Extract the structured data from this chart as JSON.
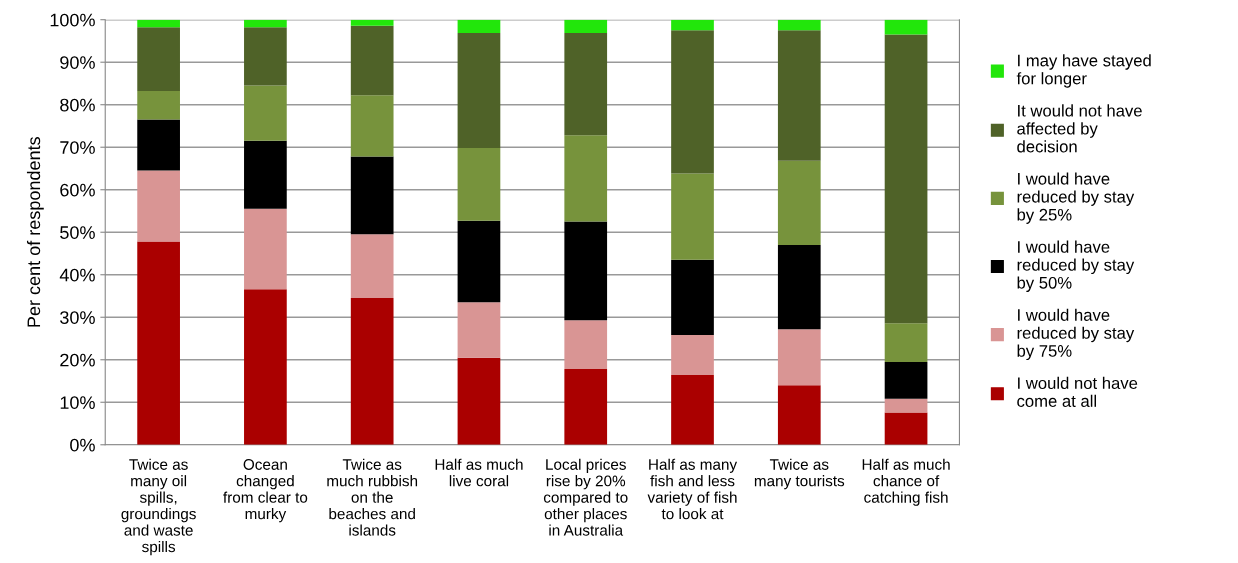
{
  "chart_data": {
    "type": "bar",
    "stacked": true,
    "ylabel": "Per cent of respondents",
    "categories": [
      "Twice as\nmany oil\nspills,\ngroundings\nand waste\nspills",
      "Ocean\nchanged\nfrom clear to\nmurky",
      "Twice as\nmuch rubbish\non the\nbeaches and\nislands",
      "Half as much\nlive coral",
      "Local prices\nrise by 20%\ncompared to\nother places\nin Australia",
      "Half as many\nfish and less\nvariety of fish\nto look at",
      "Twice as\nmany tourists",
      "Half as much\nchance of\ncatching fish"
    ],
    "series": [
      {
        "name": "I would not have\ncome at all",
        "color": "#aa0000",
        "values": [
          47.8,
          36.6,
          34.5,
          20.5,
          17.8,
          16.4,
          14.0,
          7.6
        ]
      },
      {
        "name": "I would have\nreduced by stay\nby 75%",
        "color": "#d99594",
        "values": [
          16.7,
          18.9,
          15.0,
          13.0,
          11.5,
          9.4,
          13.2,
          3.2
        ]
      },
      {
        "name": "I would have\nreduced by stay\nby 50%",
        "color": "#000000",
        "values": [
          12.0,
          16.0,
          18.3,
          19.2,
          23.2,
          17.7,
          19.8,
          8.7
        ]
      },
      {
        "name": "I would have\nreduced by stay\nby 25%",
        "color": "#77933c",
        "values": [
          6.7,
          13.0,
          14.4,
          17.1,
          20.3,
          20.3,
          19.8,
          9.1
        ]
      },
      {
        "name": "It would not have\naffected by\ndecision",
        "color": "#4f6228",
        "values": [
          15.0,
          13.7,
          16.4,
          27.1,
          24.1,
          33.7,
          30.7,
          67.9
        ]
      },
      {
        "name": "I may have stayed\nfor longer",
        "color": "#22e60b",
        "values": [
          1.8,
          1.8,
          1.4,
          3.1,
          3.1,
          2.5,
          2.5,
          3.5
        ]
      }
    ],
    "ylim": [
      0,
      100
    ],
    "yticks": [
      {
        "value": 0,
        "label": "0%"
      },
      {
        "value": 10,
        "label": "10%"
      },
      {
        "value": 20,
        "label": "20%"
      },
      {
        "value": 30,
        "label": "30%"
      },
      {
        "value": 40,
        "label": "40%"
      },
      {
        "value": 50,
        "label": "50%"
      },
      {
        "value": 60,
        "label": "60%"
      },
      {
        "value": 70,
        "label": "70%"
      },
      {
        "value": 80,
        "label": "80%"
      },
      {
        "value": 90,
        "label": "90%"
      },
      {
        "value": 100,
        "label": "100%"
      }
    ],
    "grid": "y",
    "legend": "right"
  }
}
